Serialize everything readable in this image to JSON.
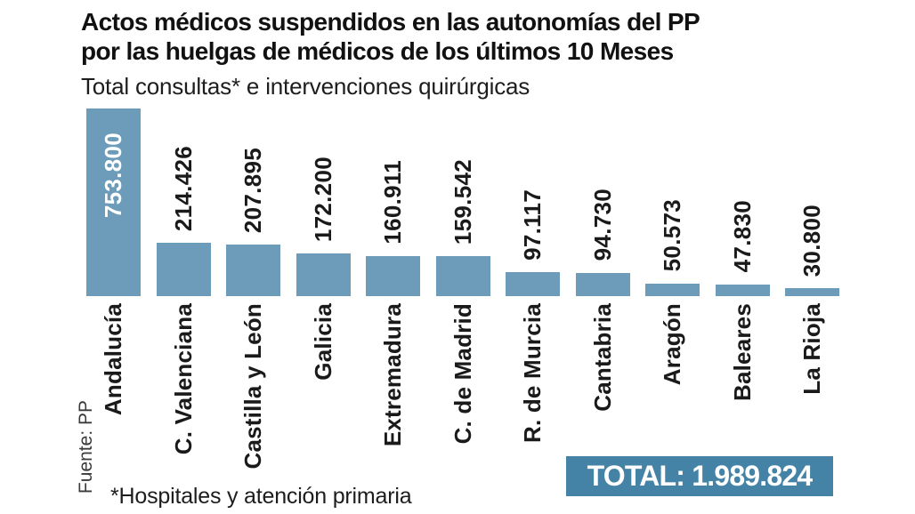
{
  "header": {
    "title_line1": "Actos médicos suspendidos en las autonomías del PP",
    "title_line2": "por las huelgas de médicos de los últimos 10 Meses",
    "subtitle": "Total consultas* e intervenciones quirúrgicas"
  },
  "chart_data": {
    "type": "bar",
    "orientation": "vertical",
    "title": "Actos médicos suspendidos en las autonomías del PP por las huelgas de médicos de los últimos 10 Meses",
    "subtitle": "Total consultas* e intervenciones quirúrgicas",
    "categories": [
      "Andalucía",
      "C. Valenciana",
      "Castilla y León",
      "Galicia",
      "Extremadura",
      "C. de Madrid",
      "R. de Murcia",
      "Cantabria",
      "Aragón",
      "Baleares",
      "La Rioja"
    ],
    "values": [
      753800,
      214426,
      207895,
      172200,
      160911,
      159542,
      97117,
      94730,
      50573,
      47830,
      30800
    ],
    "value_labels": [
      "753.800",
      "214.426",
      "207.895",
      "172.200",
      "160.911",
      "159.542",
      "97.117",
      "94.730",
      "50.573",
      "47.830",
      "30.800"
    ],
    "label_rotation_degrees": -90,
    "grid": "off",
    "legend": "none",
    "ylim": [
      0,
      753800
    ],
    "bar_color": "#6C9CBA",
    "value_outside_color": "#1a1a1a",
    "value_inside_color": "#ffffff",
    "first_bar_value_inside": true
  },
  "footer": {
    "source": "Fuente: PP",
    "note": "*Hospitales y atención primaria",
    "total_label": "TOTAL: 1.989.824",
    "total_value": 1989824,
    "total_box_color": "#4583A6"
  }
}
